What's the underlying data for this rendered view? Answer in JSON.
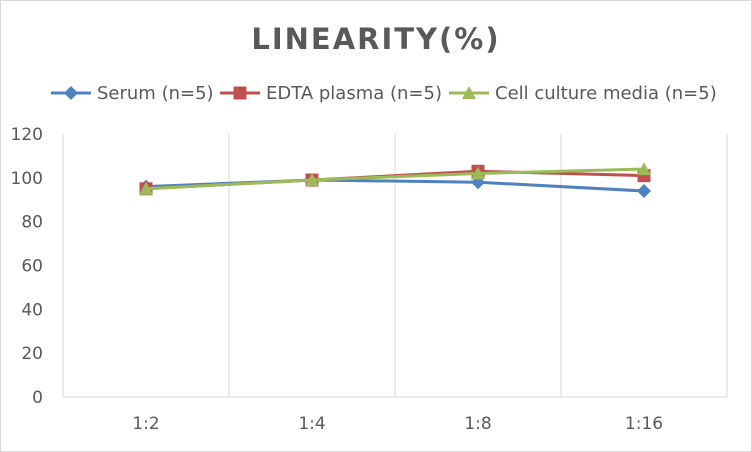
{
  "chart_data": {
    "type": "line",
    "title": "LINEARITY(%)",
    "xlabel": "",
    "ylabel": "",
    "categories": [
      "1:2",
      "1:4",
      "1:8",
      "1:16"
    ],
    "ylim": [
      0,
      120
    ],
    "yticks": [
      0,
      20,
      40,
      60,
      80,
      100,
      120
    ],
    "grid": "vertical",
    "legend": "top",
    "series": [
      {
        "name": "Serum (n=5)",
        "values": [
          96,
          99,
          98,
          94
        ],
        "color": "#4f81bd",
        "marker": "diamond"
      },
      {
        "name": "EDTA plasma (n=5)",
        "values": [
          95,
          99,
          103,
          101
        ],
        "color": "#c0504d",
        "marker": "square"
      },
      {
        "name": "Cell culture media (n=5)",
        "values": [
          95,
          99,
          102,
          104
        ],
        "color": "#9bbb59",
        "marker": "triangle"
      }
    ]
  }
}
